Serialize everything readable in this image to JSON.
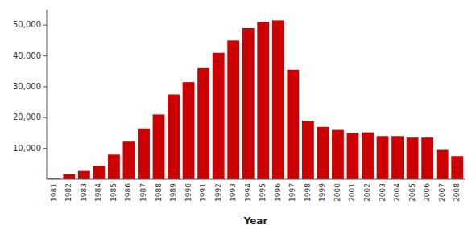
{
  "chart_data": {
    "type": "bar",
    "xlabel": "Year",
    "categories": [
      "1981",
      "1982",
      "1983",
      "1984",
      "1985",
      "1986",
      "1987",
      "1988",
      "1989",
      "1990",
      "1991",
      "1992",
      "1993",
      "1994",
      "1995",
      "1996",
      "1997",
      "1998",
      "1999",
      "2000",
      "2001",
      "2002",
      "2003",
      "2004",
      "2005",
      "2006",
      "2007",
      "2008"
    ],
    "values": [
      200,
      1600,
      2700,
      4300,
      8000,
      12200,
      16500,
      21000,
      27500,
      31500,
      36000,
      41000,
      45000,
      49000,
      51000,
      51500,
      35500,
      19000,
      17000,
      16000,
      15000,
      15200,
      14000,
      14000,
      13500,
      13500,
      9500,
      7500
    ],
    "color": "#cc0000",
    "ylim": [
      0,
      55000
    ],
    "yticks": [
      {
        "value": 10000,
        "label": "10,000"
      },
      {
        "value": 20000,
        "label": "20,000"
      },
      {
        "value": 30000,
        "label": "30,000"
      },
      {
        "value": 40000,
        "label": "40,000"
      },
      {
        "value": 50000,
        "label": "50,000"
      }
    ],
    "grid": false
  }
}
